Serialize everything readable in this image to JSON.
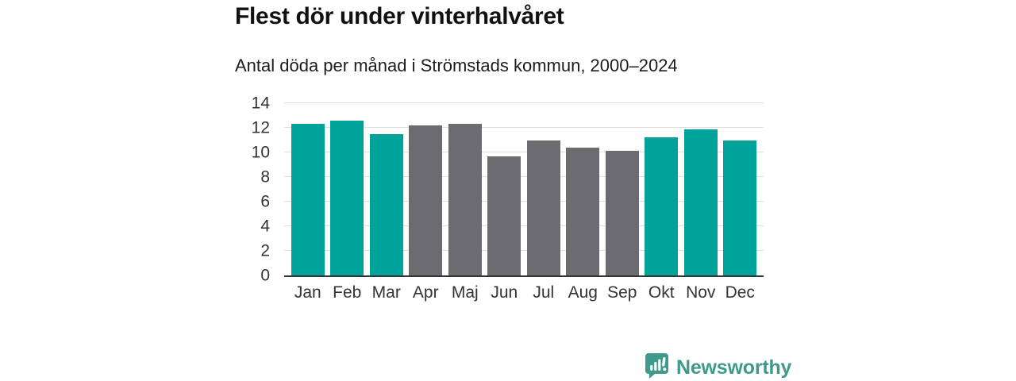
{
  "header": {
    "title": "Flest dör under vinterhalvåret",
    "subtitle": "Antal döda per månad i Strömstads kommun, 2000–2024"
  },
  "chart_data": {
    "type": "bar",
    "title": "Flest dör under vinterhalvåret",
    "subtitle": "Antal döda per månad i Strömstads kommun, 2000–2024",
    "categories": [
      "Jan",
      "Feb",
      "Mar",
      "Apr",
      "Maj",
      "Jun",
      "Jul",
      "Aug",
      "Sep",
      "Okt",
      "Nov",
      "Dec"
    ],
    "values": [
      12.3,
      12.6,
      11.5,
      12.2,
      12.3,
      9.7,
      11.0,
      10.4,
      10.1,
      11.2,
      11.9,
      11.0
    ],
    "bar_groups": [
      "winter",
      "winter",
      "winter",
      "summer",
      "summer",
      "summer",
      "summer",
      "summer",
      "summer",
      "winter",
      "winter",
      "winter"
    ],
    "xlabel": "",
    "ylabel": "",
    "ylim": [
      0,
      14
    ],
    "yticks": [
      0,
      2,
      4,
      6,
      8,
      10,
      12,
      14
    ],
    "grid": true,
    "legend": false,
    "colors": {
      "winter": "#00a39a",
      "summer": "#6b6b70",
      "gridline": "#dedede",
      "axis": "#333333"
    }
  },
  "branding": {
    "logo_text": "Newsworthy",
    "logo_color": "#3e9a8c",
    "logo_icon": "speech-bubble-bar-chart-exclamation"
  }
}
